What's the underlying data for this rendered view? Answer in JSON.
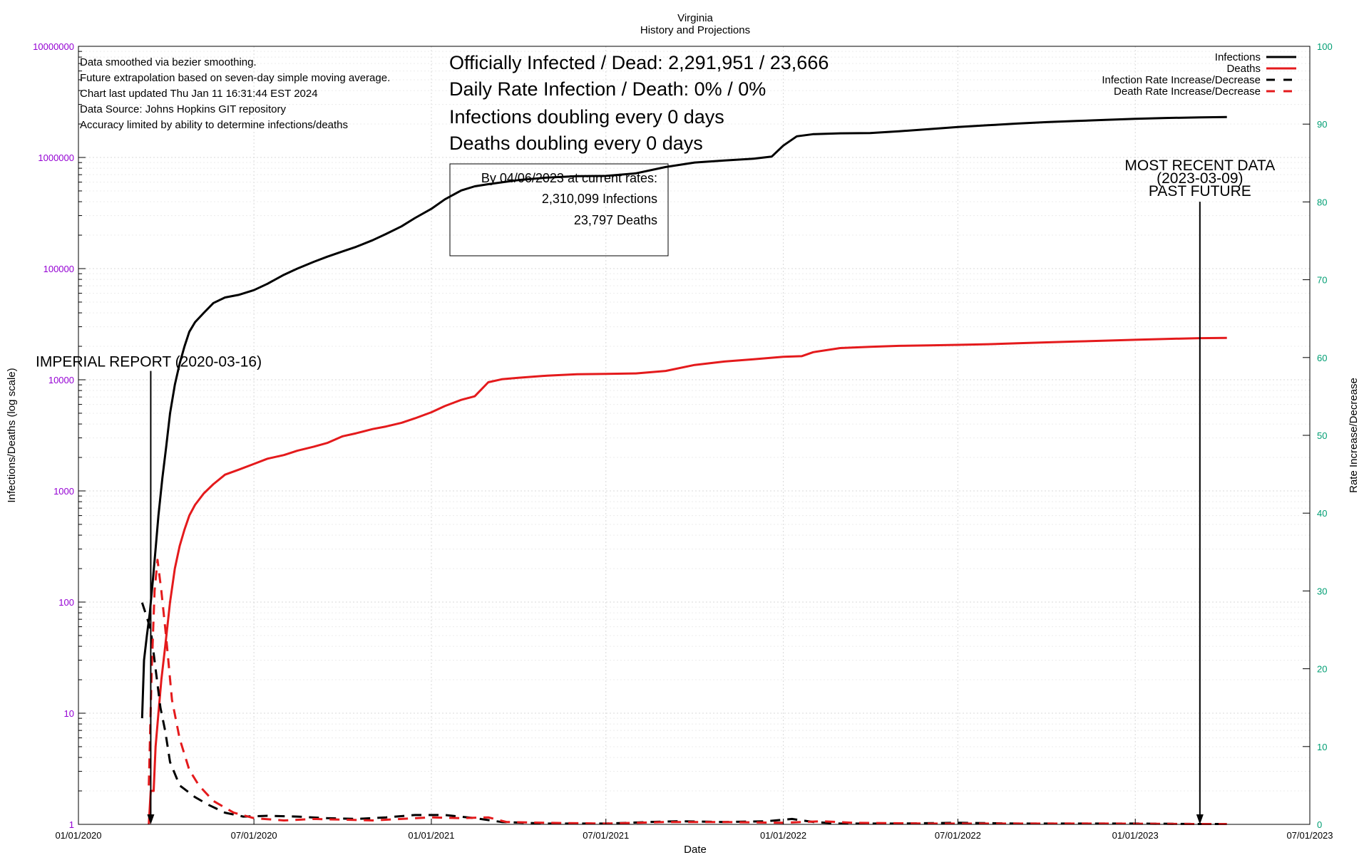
{
  "chart_data": {
    "type": "line",
    "title": "Virginia",
    "subtitle": "History and Projections",
    "xlabel": "Date",
    "ylabel": "Infections/Deaths (log scale)",
    "y2label": "Rate Increase/Decrease",
    "x_ticks": [
      "01/01/2020",
      "07/01/2020",
      "01/01/2021",
      "07/01/2021",
      "01/01/2022",
      "07/01/2022",
      "01/01/2023",
      "07/01/2023"
    ],
    "xlim": [
      "2020-01-01",
      "2023-07-01"
    ],
    "y_log_scale": true,
    "ylim": [
      1,
      10000000
    ],
    "y_ticks": [
      "1",
      "10",
      "100",
      "1000",
      "10000",
      "100000",
      "1000000",
      "10000000"
    ],
    "y2lim": [
      0,
      100
    ],
    "y2_ticks": [
      "0",
      "10",
      "20",
      "30",
      "40",
      "50",
      "60",
      "70",
      "80",
      "90",
      "100"
    ],
    "grid": true,
    "legend_position": "top-right",
    "colors": {
      "infections": "#000000",
      "deaths": "#e41a1c",
      "left_axis": "#9400d3",
      "right_axis": "#009e73"
    },
    "notes": [
      "Data smoothed via bezier smoothing.",
      "Future extrapolation based on seven-day simple moving average.",
      "Chart last updated Thu Jan 11 16:31:44 EST 2024",
      "Data Source: Johns Hopkins GIT repository",
      "Accuracy limited by ability to determine infections/deaths"
    ],
    "headline": [
      "Officially Infected / Dead:  2,291,951 / 23,666",
      "Daily Rate Infection / Death:  0% / 0%",
      "Infections doubling every 0 days",
      "Deaths doubling every 0 days"
    ],
    "projection_box": [
      "By 04/06/2023 at current rates:",
      "2,310,099 Infections",
      "23,797 Deaths"
    ],
    "markers": [
      {
        "date": "2020-03-16",
        "lines": [
          "IMPERIAL REPORT (2020-03-16)"
        ],
        "value_top": 12000
      },
      {
        "date": "2023-03-09",
        "lines": [
          "MOST RECENT DATA",
          "(2023-03-09)",
          "PAST    FUTURE"
        ],
        "value_top": 400000
      }
    ],
    "series": [
      {
        "name": "Infections",
        "axis": "left",
        "style": "solid",
        "color": "#000000",
        "points": [
          [
            "2020-03-07",
            9
          ],
          [
            "2020-03-09",
            30
          ],
          [
            "2020-03-12",
            50
          ],
          [
            "2020-03-15",
            80
          ],
          [
            "2020-03-18",
            150
          ],
          [
            "2020-03-21",
            300
          ],
          [
            "2020-03-24",
            600
          ],
          [
            "2020-03-28",
            1300
          ],
          [
            "2020-04-01",
            2500
          ],
          [
            "2020-04-05",
            5000
          ],
          [
            "2020-04-10",
            9000
          ],
          [
            "2020-04-15",
            14000
          ],
          [
            "2020-04-20",
            20000
          ],
          [
            "2020-04-25",
            27000
          ],
          [
            "2020-05-01",
            33000
          ],
          [
            "2020-05-10",
            40000
          ],
          [
            "2020-05-20",
            49000
          ],
          [
            "2020-06-01",
            55000
          ],
          [
            "2020-06-15",
            58000
          ],
          [
            "2020-07-01",
            64000
          ],
          [
            "2020-07-15",
            73000
          ],
          [
            "2020-08-01",
            88000
          ],
          [
            "2020-08-15",
            100000
          ],
          [
            "2020-09-01",
            115000
          ],
          [
            "2020-09-15",
            128000
          ],
          [
            "2020-10-01",
            143000
          ],
          [
            "2020-10-15",
            157000
          ],
          [
            "2020-11-01",
            180000
          ],
          [
            "2020-11-15",
            205000
          ],
          [
            "2020-12-01",
            240000
          ],
          [
            "2020-12-15",
            285000
          ],
          [
            "2021-01-01",
            345000
          ],
          [
            "2021-01-15",
            420000
          ],
          [
            "2021-02-01",
            505000
          ],
          [
            "2021-02-15",
            550000
          ],
          [
            "2021-03-01",
            575000
          ],
          [
            "2021-04-01",
            625000
          ],
          [
            "2021-05-01",
            660000
          ],
          [
            "2021-06-01",
            678000
          ],
          [
            "2021-07-01",
            682000
          ],
          [
            "2021-08-01",
            720000
          ],
          [
            "2021-09-01",
            820000
          ],
          [
            "2021-10-01",
            900000
          ],
          [
            "2021-11-01",
            940000
          ],
          [
            "2021-12-01",
            975000
          ],
          [
            "2021-12-20",
            1020000
          ],
          [
            "2022-01-01",
            1280000
          ],
          [
            "2022-01-15",
            1550000
          ],
          [
            "2022-02-01",
            1620000
          ],
          [
            "2022-03-01",
            1650000
          ],
          [
            "2022-04-01",
            1660000
          ],
          [
            "2022-05-01",
            1720000
          ],
          [
            "2022-06-01",
            1800000
          ],
          [
            "2022-07-01",
            1880000
          ],
          [
            "2022-08-01",
            1950000
          ],
          [
            "2022-09-01",
            2020000
          ],
          [
            "2022-10-01",
            2080000
          ],
          [
            "2022-11-01",
            2130000
          ],
          [
            "2022-12-01",
            2180000
          ],
          [
            "2023-01-01",
            2230000
          ],
          [
            "2023-02-01",
            2265000
          ],
          [
            "2023-03-09",
            2291951
          ],
          [
            "2023-04-06",
            2310099
          ]
        ]
      },
      {
        "name": "Deaths",
        "axis": "left",
        "style": "solid",
        "color": "#e41a1c",
        "points": [
          [
            "2020-03-14",
            1
          ],
          [
            "2020-03-16",
            2
          ],
          [
            "2020-03-19",
            2
          ],
          [
            "2020-03-21",
            5
          ],
          [
            "2020-03-24",
            10
          ],
          [
            "2020-03-27",
            20
          ],
          [
            "2020-03-31",
            40
          ],
          [
            "2020-04-05",
            100
          ],
          [
            "2020-04-10",
            200
          ],
          [
            "2020-04-15",
            320
          ],
          [
            "2020-04-20",
            450
          ],
          [
            "2020-04-25",
            600
          ],
          [
            "2020-05-01",
            750
          ],
          [
            "2020-05-10",
            950
          ],
          [
            "2020-05-20",
            1150
          ],
          [
            "2020-06-01",
            1400
          ],
          [
            "2020-06-15",
            1550
          ],
          [
            "2020-07-01",
            1750
          ],
          [
            "2020-07-15",
            1950
          ],
          [
            "2020-08-01",
            2100
          ],
          [
            "2020-08-15",
            2300
          ],
          [
            "2020-09-01",
            2500
          ],
          [
            "2020-09-15",
            2700
          ],
          [
            "2020-10-01",
            3100
          ],
          [
            "2020-10-15",
            3300
          ],
          [
            "2020-11-01",
            3600
          ],
          [
            "2020-11-15",
            3800
          ],
          [
            "2020-12-01",
            4100
          ],
          [
            "2020-12-15",
            4500
          ],
          [
            "2021-01-01",
            5100
          ],
          [
            "2021-01-15",
            5800
          ],
          [
            "2021-02-01",
            6600
          ],
          [
            "2021-02-15",
            7100
          ],
          [
            "2021-03-01",
            9500
          ],
          [
            "2021-03-15",
            10100
          ],
          [
            "2021-04-01",
            10400
          ],
          [
            "2021-05-01",
            10900
          ],
          [
            "2021-06-01",
            11200
          ],
          [
            "2021-07-01",
            11300
          ],
          [
            "2021-08-01",
            11400
          ],
          [
            "2021-09-01",
            12000
          ],
          [
            "2021-10-01",
            13600
          ],
          [
            "2021-11-01",
            14600
          ],
          [
            "2021-12-01",
            15300
          ],
          [
            "2022-01-01",
            16100
          ],
          [
            "2022-01-20",
            16300
          ],
          [
            "2022-02-01",
            17700
          ],
          [
            "2022-03-01",
            19300
          ],
          [
            "2022-04-01",
            19800
          ],
          [
            "2022-05-01",
            20200
          ],
          [
            "2022-06-01",
            20400
          ],
          [
            "2022-07-01",
            20600
          ],
          [
            "2022-08-01",
            20900
          ],
          [
            "2022-09-01",
            21300
          ],
          [
            "2022-10-01",
            21700
          ],
          [
            "2022-11-01",
            22100
          ],
          [
            "2022-12-01",
            22500
          ],
          [
            "2023-01-01",
            22900
          ],
          [
            "2023-02-01",
            23300
          ],
          [
            "2023-03-09",
            23666
          ],
          [
            "2023-04-06",
            23797
          ]
        ]
      },
      {
        "name": "Infection Rate Increase/Decrease",
        "axis": "right",
        "style": "dashed",
        "color": "#000000",
        "points": [
          [
            "2020-03-07",
            28.5
          ],
          [
            "2020-03-11",
            27
          ],
          [
            "2020-03-16",
            25
          ],
          [
            "2020-03-21",
            20
          ],
          [
            "2020-03-26",
            15
          ],
          [
            "2020-03-31",
            12
          ],
          [
            "2020-04-05",
            8
          ],
          [
            "2020-04-15",
            5
          ],
          [
            "2020-05-01",
            3.5
          ],
          [
            "2020-05-15",
            2.5
          ],
          [
            "2020-06-01",
            1.5
          ],
          [
            "2020-06-20",
            1.0
          ],
          [
            "2020-07-15",
            1.1
          ],
          [
            "2020-08-15",
            1.0
          ],
          [
            "2020-09-15",
            0.8
          ],
          [
            "2020-10-15",
            0.7
          ],
          [
            "2020-11-15",
            0.9
          ],
          [
            "2020-12-15",
            1.2
          ],
          [
            "2021-01-15",
            1.2
          ],
          [
            "2021-02-15",
            0.8
          ],
          [
            "2021-03-15",
            0.3
          ],
          [
            "2021-05-01",
            0.1
          ],
          [
            "2021-07-01",
            0.1
          ],
          [
            "2021-08-15",
            0.3
          ],
          [
            "2021-09-15",
            0.4
          ],
          [
            "2021-11-01",
            0.3
          ],
          [
            "2021-12-15",
            0.4
          ],
          [
            "2022-01-10",
            0.7
          ],
          [
            "2022-02-01",
            0.3
          ],
          [
            "2022-03-01",
            0.1
          ],
          [
            "2022-05-01",
            0.1
          ],
          [
            "2022-07-01",
            0.2
          ],
          [
            "2022-09-01",
            0.1
          ],
          [
            "2022-11-01",
            0.1
          ],
          [
            "2023-01-01",
            0.1
          ],
          [
            "2023-03-09",
            0.05
          ],
          [
            "2023-04-06",
            0.05
          ]
        ]
      },
      {
        "name": "Death Rate Increase/Decrease",
        "axis": "right",
        "style": "dashed",
        "color": "#e41a1c",
        "points": [
          [
            "2020-03-14",
            5
          ],
          [
            "2020-03-17",
            20
          ],
          [
            "2020-03-20",
            30
          ],
          [
            "2020-03-23",
            34
          ],
          [
            "2020-03-27",
            30
          ],
          [
            "2020-04-01",
            24
          ],
          [
            "2020-04-07",
            16
          ],
          [
            "2020-04-15",
            11
          ],
          [
            "2020-04-25",
            7
          ],
          [
            "2020-05-05",
            5
          ],
          [
            "2020-05-20",
            3
          ],
          [
            "2020-06-10",
            1.5
          ],
          [
            "2020-07-01",
            0.8
          ],
          [
            "2020-08-01",
            0.5
          ],
          [
            "2020-09-01",
            0.7
          ],
          [
            "2020-10-01",
            0.6
          ],
          [
            "2020-11-01",
            0.5
          ],
          [
            "2020-12-01",
            0.7
          ],
          [
            "2021-01-01",
            0.9
          ],
          [
            "2021-02-01",
            0.8
          ],
          [
            "2021-03-01",
            0.9
          ],
          [
            "2021-03-20",
            0.3
          ],
          [
            "2021-05-01",
            0.2
          ],
          [
            "2021-07-01",
            0.1
          ],
          [
            "2021-09-01",
            0.3
          ],
          [
            "2021-11-01",
            0.3
          ],
          [
            "2022-01-01",
            0.2
          ],
          [
            "2022-02-10",
            0.4
          ],
          [
            "2022-03-15",
            0.2
          ],
          [
            "2022-06-01",
            0.1
          ],
          [
            "2022-09-01",
            0.1
          ],
          [
            "2022-12-01",
            0.1
          ],
          [
            "2023-03-09",
            0.05
          ],
          [
            "2023-04-06",
            0.05
          ]
        ]
      }
    ]
  }
}
